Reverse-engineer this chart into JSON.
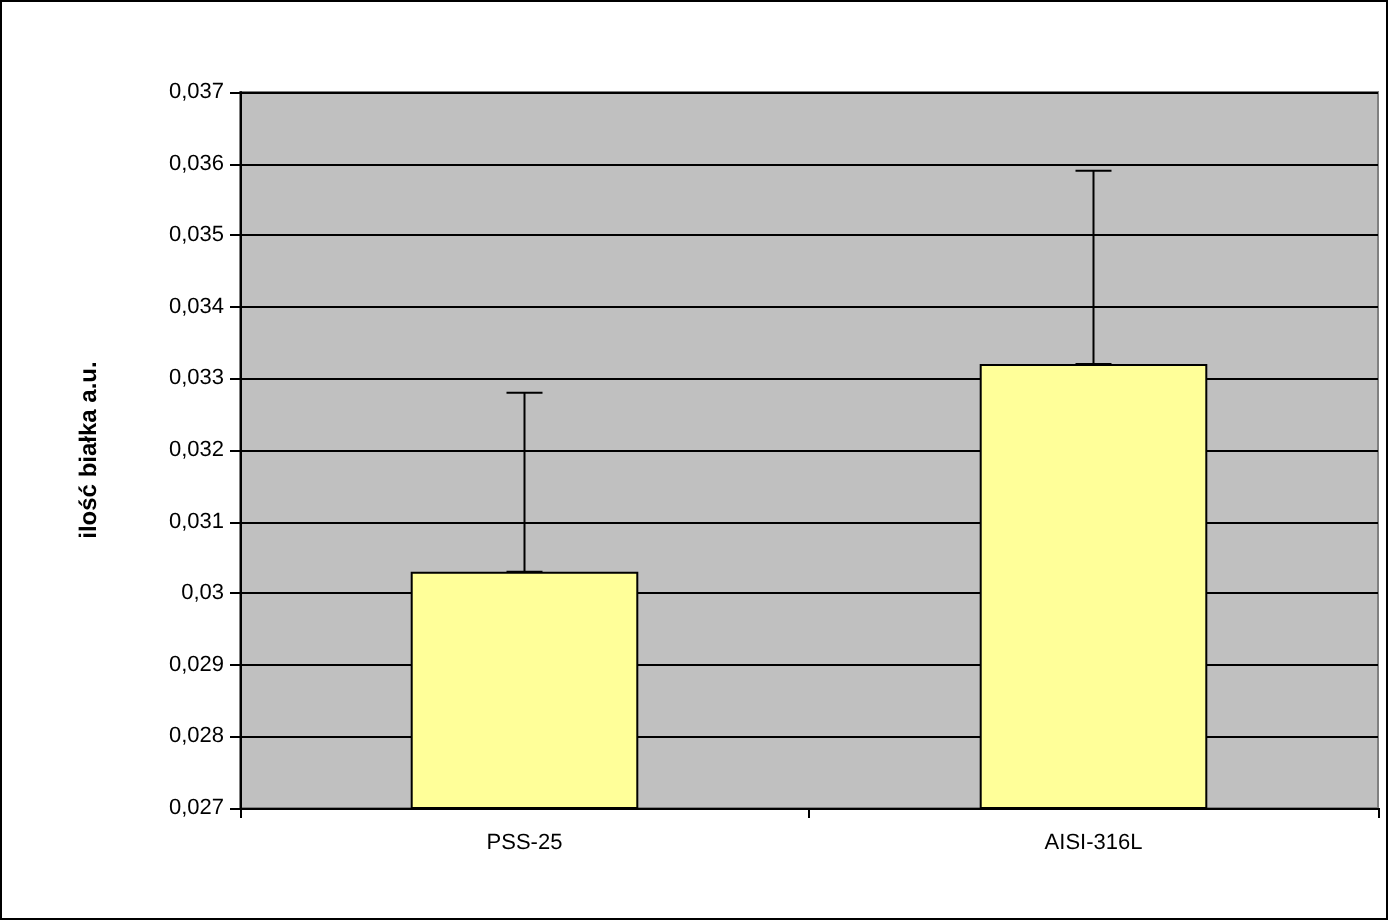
{
  "chart_data": {
    "type": "bar",
    "ylabel": "ilość białka a.u.",
    "categories": [
      "PSS-25",
      "AISI-316L"
    ],
    "values": [
      0.0303,
      0.0332
    ],
    "errors": [
      [
        0.0303,
        0.0328
      ],
      [
        0.0332,
        0.0359
      ]
    ],
    "color": "#ffff99",
    "ylim": [
      0.027,
      0.037
    ],
    "yticks": [
      {
        "value": 0.027,
        "label": "0,027"
      },
      {
        "value": 0.028,
        "label": "0,028"
      },
      {
        "value": 0.029,
        "label": "0,029"
      },
      {
        "value": 0.03,
        "label": "0,03"
      },
      {
        "value": 0.031,
        "label": "0,031"
      },
      {
        "value": 0.032,
        "label": "0,032"
      },
      {
        "value": 0.033,
        "label": "0,033"
      },
      {
        "value": 0.034,
        "label": "0,034"
      },
      {
        "value": 0.035,
        "label": "0,035"
      },
      {
        "value": 0.036,
        "label": "0,036"
      },
      {
        "value": 0.037,
        "label": "0,037"
      }
    ],
    "grid": "y"
  }
}
